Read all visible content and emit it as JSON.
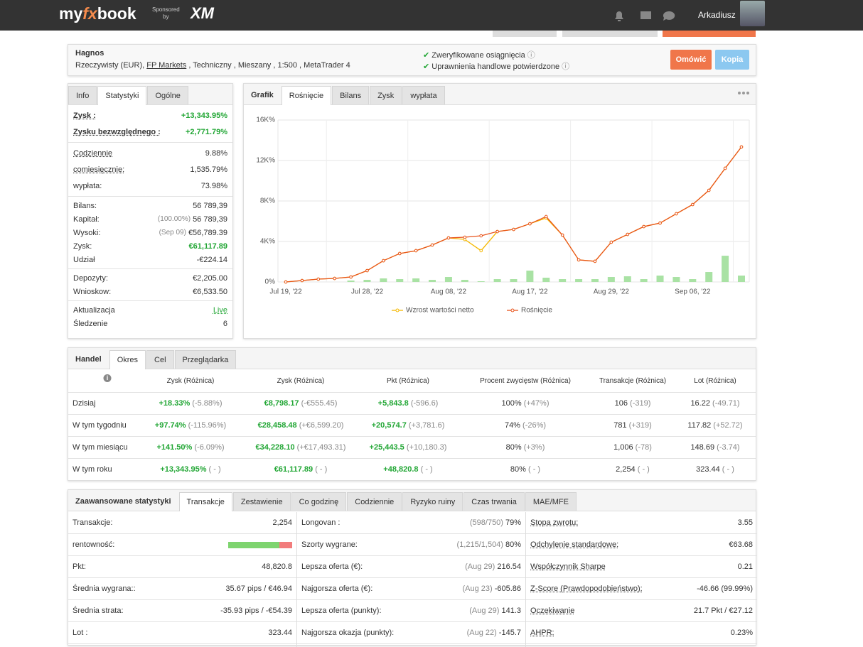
{
  "header": {
    "brand_my": "my",
    "brand_fx": "fx",
    "brand_book": "book",
    "sponsored_1": "Sponsored",
    "sponsored_2": "by",
    "sponsor": "XM",
    "user": "Arkadiusz"
  },
  "account": {
    "name": "Hagnos",
    "details_pre": "Rzeczywisty (EUR), ",
    "broker": "FP Markets",
    "details_post": " , Techniczny , Mieszany , 1:500 , MetaTrader 4",
    "checks": [
      "Zweryfikowane osiągnięcia",
      "Uprawnienia handlowe potwierdzone"
    ],
    "buttons": [
      "Omówić",
      "Kopia"
    ]
  },
  "info": {
    "tabs": [
      "Info",
      "Statystyki",
      "Ogólne"
    ],
    "groups": [
      [
        {
          "label": "Zysk :",
          "value": "+13,343.95%"
        },
        {
          "label": "Zysku bezwzględnego :",
          "value": "+2,771.79%"
        }
      ],
      [
        {
          "label": "Codziennie",
          "value": "9.88%"
        },
        {
          "label": "comiesięcznie:",
          "value": "1,535.79%"
        },
        {
          "label": "wypłata:",
          "value": "73.98%"
        }
      ],
      [
        {
          "label": "Bilans:",
          "value": "56 789,39"
        },
        {
          "label": "Kapitał:",
          "note": "(100.00%)",
          "value": "56 789,39"
        },
        {
          "label": "Wysoki:",
          "note": "(Sep 09)",
          "value": "€56,789.39"
        },
        {
          "label": "Zysk:",
          "value": "€61,117.89"
        },
        {
          "label": "Udział",
          "value": "-€224.14"
        }
      ],
      [
        {
          "label": "Depozyty:",
          "value": "€2,205.00"
        },
        {
          "label": "Wnioskow:",
          "value": "€6,533.50"
        }
      ],
      [
        {
          "label": "Aktualizacja",
          "value": "Live"
        },
        {
          "label": "Śledzenie",
          "value": "6"
        }
      ]
    ]
  },
  "graph": {
    "tabs": [
      "Grafik",
      "Rośnięcie",
      "Bilans",
      "Zysk",
      "wypłata"
    ]
  },
  "chart_data": {
    "type": "line",
    "categories": [
      "Jul 19, '22",
      null,
      null,
      null,
      null,
      "Jul 28, '22",
      null,
      null,
      null,
      null,
      "Aug 08, '22",
      null,
      null,
      null,
      null,
      "Aug 17, '22",
      null,
      null,
      null,
      null,
      "Aug 29, '22",
      null,
      null,
      null,
      null,
      "Sep 06, '22",
      null,
      null,
      null
    ],
    "series": [
      {
        "type": "bar",
        "color": "#a9e2a4",
        "values": [
          0,
          0,
          0,
          0,
          140,
          210,
          350,
          280,
          350,
          210,
          490,
          210,
          70,
          280,
          280,
          1120,
          420,
          280,
          280,
          280,
          490,
          560,
          280,
          630,
          490,
          280,
          980,
          2590,
          630
        ]
      },
      {
        "name": "Wzrost wartości netto",
        "color": "#f5b800",
        "values": [
          0,
          140,
          280,
          350,
          490,
          1120,
          2100,
          2810,
          3090,
          3650,
          4350,
          4200,
          3090,
          4980,
          5190,
          5750,
          6320,
          4630,
          2180,
          2040,
          3930,
          4700,
          5470,
          5820,
          6740,
          7650,
          9050,
          11230,
          13340
        ]
      },
      {
        "name": "Rośnięcie",
        "color": "#e8541c",
        "values": [
          0,
          140,
          280,
          350,
          490,
          1120,
          2100,
          2810,
          3090,
          3650,
          4350,
          4420,
          4560,
          4980,
          5190,
          5750,
          6460,
          4630,
          2180,
          2040,
          3930,
          4700,
          5470,
          5820,
          6740,
          7650,
          9050,
          11230,
          13340
        ]
      }
    ],
    "ylim": [
      0,
      16000
    ],
    "yticks": [
      {
        "value": 0,
        "label": "0%"
      },
      {
        "value": 4000,
        "label": "4K%"
      },
      {
        "value": 8000,
        "label": "8K%"
      },
      {
        "value": 12000,
        "label": "12K%"
      },
      {
        "value": 16000,
        "label": "16K%"
      }
    ],
    "grid": true,
    "legend": "bottom"
  },
  "trading": {
    "tabs": [
      "Handel",
      "Okres",
      "Cel",
      "Przeglądarka"
    ],
    "columns": [
      "Zysk (Różnica)",
      "Zysk (Różnica)",
      "Pkt (Różnica)",
      "Procent zwycięstw (Różnica)",
      "Transakcje (Różnica)",
      "Lot (Różnica)"
    ],
    "rows": [
      {
        "label": "Dzisiaj",
        "cells": [
          [
            "+18.33%",
            "(-5.88%)"
          ],
          [
            "€8,798.17",
            "(-€555.45)"
          ],
          [
            "+5,843.8",
            "(-596.6)"
          ],
          [
            "100%",
            "(+47%)"
          ],
          [
            "106",
            "(-319)"
          ],
          [
            "16.22",
            "(-49.71)"
          ]
        ]
      },
      {
        "label": "W tym tygodniu",
        "cells": [
          [
            "+97.74%",
            "(-115.96%)"
          ],
          [
            "€28,458.48",
            "(+€6,599.20)"
          ],
          [
            "+20,574.7",
            "(+3,781.6)"
          ],
          [
            "74%",
            "(-26%)"
          ],
          [
            "781",
            "(+319)"
          ],
          [
            "117.82",
            "(+52.72)"
          ]
        ]
      },
      {
        "label": "W tym miesiącu",
        "cells": [
          [
            "+141.50%",
            "(-6.09%)"
          ],
          [
            "€34,228.10",
            "(+€17,493.31)"
          ],
          [
            "+25,443.5",
            "(+10,180.3)"
          ],
          [
            "80%",
            "(+3%)"
          ],
          [
            "1,006",
            "(-78)"
          ],
          [
            "148.69",
            "(-3.74)"
          ]
        ]
      },
      {
        "label": "W tym roku",
        "cells": [
          [
            "+13,343.95%",
            "( - )"
          ],
          [
            "€61,117.89",
            "( - )"
          ],
          [
            "+48,820.8",
            "( - )"
          ],
          [
            "80%",
            "( - )"
          ],
          [
            "2,254",
            "( - )"
          ],
          [
            "323.44",
            "( - )"
          ]
        ]
      }
    ]
  },
  "advanced": {
    "tabs": [
      "Zaawansowane statystyki",
      "Transakcje",
      "Zestawienie",
      "Co godzinę",
      "Codziennie",
      "Ryzyko ruiny",
      "Czas trwania",
      "MAE/MFE"
    ],
    "columns": [
      [
        {
          "label": "Transakcje:",
          "value": "2,254"
        },
        {
          "label": "rentowność:"
        },
        {
          "label": "Pkt:",
          "value": "48,820.8"
        },
        {
          "label": "Średnia wygrana::",
          "value": "35.67 pips / €46.94"
        },
        {
          "label": "Średnia strata:",
          "value": "-35.93 pips / -€54.39"
        },
        {
          "label": "Lot :",
          "value": "323.44"
        }
      ],
      [
        {
          "label": "Longovan :",
          "note": "(598/750)",
          "value": "79%"
        },
        {
          "label": "Szorty wygrane:",
          "note": "(1,215/1,504)",
          "value": "80%"
        },
        {
          "label": "Lepsza oferta (€):",
          "note": "(Aug 29)",
          "value": "216.54"
        },
        {
          "label": "Najgorsza oferta (€):",
          "note": "(Aug 23)",
          "value": "-605.86"
        },
        {
          "label": "Lepsza oferta (punkty):",
          "note": "(Aug 29)",
          "value": "141.3"
        },
        {
          "label": "Najgorsza okazja (punkty):",
          "note": "(Aug 22)",
          "value": "-145.7"
        }
      ],
      [
        {
          "label": "Stopa zwrotu:",
          "value": "3.55"
        },
        {
          "label": "Odchylenie standardowe:",
          "value": "€63.68"
        },
        {
          "label": "Współczynnik Sharpe",
          "value": "0.21"
        },
        {
          "label": "Z-Score (Prawdopodobieństwo):",
          "value": "-46.66 (99.99%)"
        },
        {
          "label": "Oczekiwanie",
          "value": "21.7 Pkt / €27.12"
        },
        {
          "label": "AHPR:",
          "value": "0.23%"
        }
      ]
    ]
  }
}
